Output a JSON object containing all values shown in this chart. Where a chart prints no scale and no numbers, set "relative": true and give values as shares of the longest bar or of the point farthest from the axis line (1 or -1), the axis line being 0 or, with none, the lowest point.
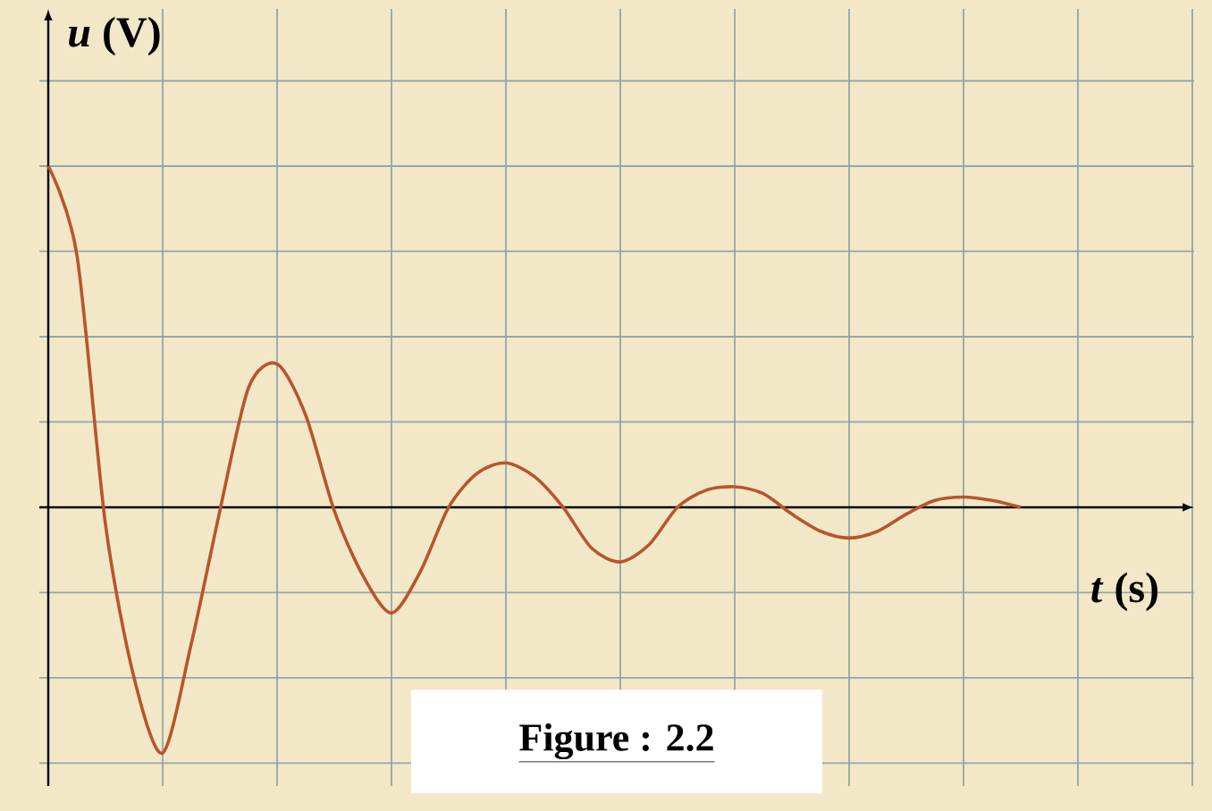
{
  "chart_data": {
    "type": "line",
    "relative": true,
    "xlabel": "*t* (s)",
    "ylabel": "*u* (V)",
    "annotations": [
      "Figure : 2.2"
    ],
    "grid": true,
    "tick_labels": false,
    "marker": "none",
    "line_style": "solid",
    "categories": [
      null,
      null,
      null,
      null,
      null,
      null,
      null,
      null,
      null,
      null,
      null,
      null,
      null,
      null,
      null,
      null,
      null,
      null,
      null,
      null,
      null,
      null,
      null,
      null,
      null,
      null,
      null,
      null,
      null,
      null,
      null,
      null,
      null,
      null,
      null
    ],
    "series": [
      {
        "color": "#b8552c",
        "values": [
          1.0,
          0.74,
          -0.05,
          -0.5,
          -0.72,
          -0.4,
          -0.01,
          0.35,
          0.42,
          0.27,
          -0.01,
          -0.2,
          -0.31,
          -0.19,
          0.0,
          0.1,
          0.13,
          0.09,
          0.0,
          -0.12,
          -0.16,
          -0.11,
          0.0,
          0.05,
          0.06,
          0.04,
          -0.02,
          -0.07,
          -0.09,
          -0.07,
          -0.02,
          0.02,
          0.03,
          0.02,
          0.0
        ]
      }
    ]
  }
}
